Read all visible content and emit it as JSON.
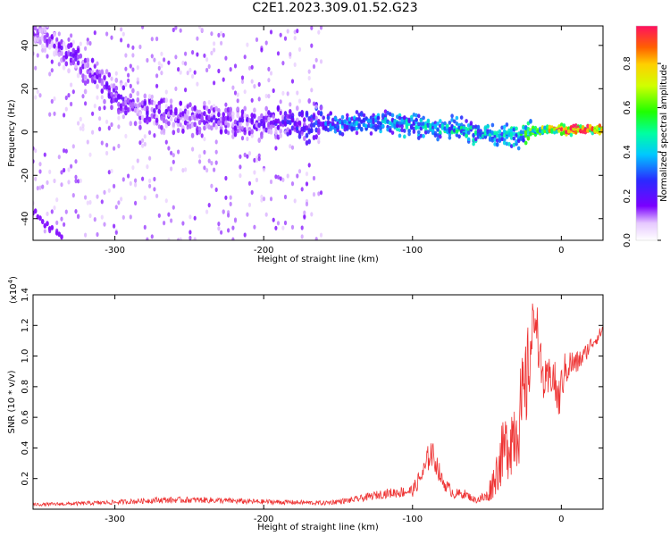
{
  "title": "C2E1.2023.309.01.52.G23",
  "chart_data": [
    {
      "type": "heatmap",
      "xlabel": "Height of straight line (km)",
      "ylabel": "Frequency (Hz)",
      "xlim": [
        -355,
        28
      ],
      "ylim": [
        -50,
        49
      ],
      "xticks": [
        -300,
        -200,
        -100,
        0
      ],
      "yticks": [
        -40,
        -20,
        0,
        20,
        40
      ],
      "colorbar": {
        "label": "Normalized spectral amplitude",
        "range": [
          0,
          0.97
        ],
        "ticks": [
          0.0,
          0.2,
          0.4,
          0.6,
          0.8
        ]
      },
      "ridge": {
        "description_points": [
          {
            "x": -350,
            "y": 45,
            "amp": 0.12
          },
          {
            "x": -320,
            "y": 30,
            "amp": 0.15
          },
          {
            "x": -290,
            "y": 12,
            "amp": 0.15
          },
          {
            "x": -250,
            "y": 6,
            "amp": 0.14
          },
          {
            "x": -200,
            "y": 4,
            "amp": 0.15
          },
          {
            "x": -150,
            "y": 4,
            "amp": 0.3
          },
          {
            "x": -110,
            "y": 4,
            "amp": 0.35
          },
          {
            "x": -70,
            "y": 1,
            "amp": 0.4
          },
          {
            "x": -40,
            "y": -2,
            "amp": 0.35
          },
          {
            "x": -15,
            "y": 1,
            "amp": 0.55
          },
          {
            "x": 0,
            "y": 1,
            "amp": 0.8
          },
          {
            "x": 15,
            "y": 1,
            "amp": 0.9
          },
          {
            "x": 25,
            "y": 1,
            "amp": 0.7
          }
        ]
      },
      "grid": false
    },
    {
      "type": "line",
      "xlabel": "Height of straight line (km)",
      "ylabel": "SNR (10 * v/v)",
      "y_multiplier": "(x10",
      "y_multiplier_exp": "4",
      "y_multiplier_close": ")",
      "xlim": [
        -355,
        28
      ],
      "ylim": [
        0,
        1.4
      ],
      "xticks": [
        -300,
        -200,
        -100,
        0
      ],
      "yticks": [
        0.2,
        0.4,
        0.6,
        0.8,
        1.0,
        1.2,
        1.4
      ],
      "series": [
        {
          "color": "#ee3333",
          "x": [
            -355,
            -330,
            -300,
            -270,
            -240,
            -210,
            -180,
            -160,
            -140,
            -120,
            -100,
            -92,
            -88,
            -84,
            -80,
            -72,
            -65,
            -58,
            -50,
            -45,
            -40,
            -35,
            -30,
            -25,
            -20,
            -17,
            -14,
            -10,
            -6,
            -2,
            2,
            6,
            10,
            15,
            20,
            25,
            28
          ],
          "y": [
            0.03,
            0.035,
            0.045,
            0.06,
            0.06,
            0.05,
            0.045,
            0.04,
            0.06,
            0.1,
            0.12,
            0.25,
            0.38,
            0.3,
            0.18,
            0.1,
            0.1,
            0.06,
            0.08,
            0.2,
            0.35,
            0.45,
            0.55,
            0.7,
            1.1,
            1.3,
            0.9,
            0.8,
            0.9,
            0.7,
            0.9,
            0.95,
            0.95,
            1.0,
            1.08,
            1.13,
            1.18
          ],
          "noise_amplitude": [
            0.01,
            0.012,
            0.015,
            0.02,
            0.02,
            0.018,
            0.015,
            0.015,
            0.02,
            0.03,
            0.04,
            0.08,
            0.1,
            0.08,
            0.05,
            0.035,
            0.03,
            0.02,
            0.05,
            0.12,
            0.2,
            0.25,
            0.3,
            0.35,
            0.25,
            0.12,
            0.2,
            0.15,
            0.15,
            0.15,
            0.12,
            0.1,
            0.08,
            0.06,
            0.05,
            0.04,
            0.04
          ]
        }
      ]
    }
  ]
}
